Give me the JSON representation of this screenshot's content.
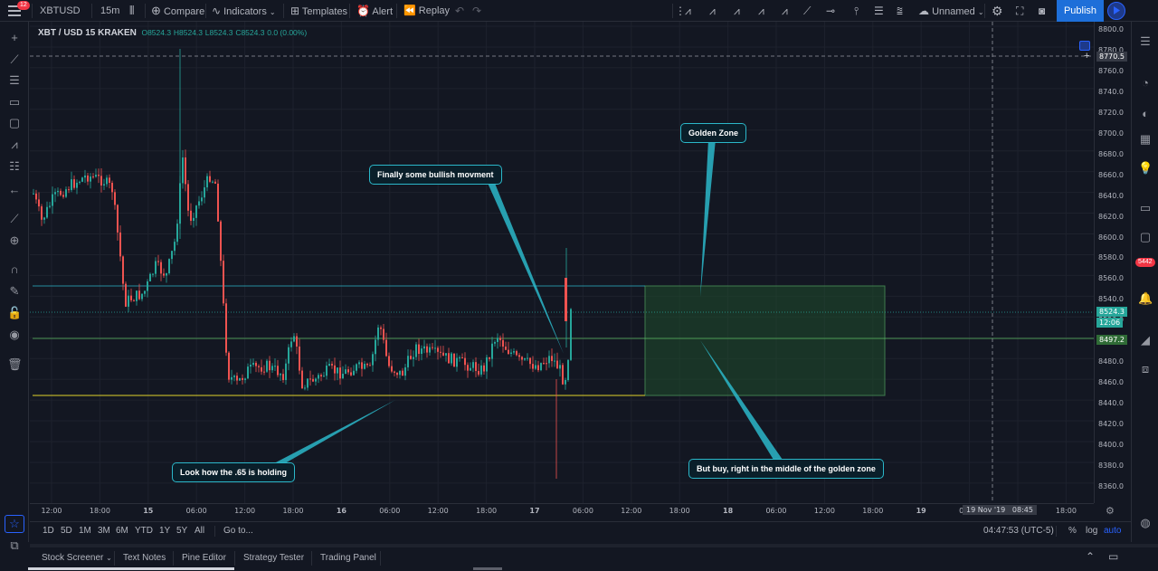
{
  "header": {
    "symbol": "XBTUSD",
    "interval": "15m",
    "compare": "Compare",
    "indicators": "Indicators",
    "templates": "Templates",
    "alert": "Alert",
    "replay": "Replay",
    "layout_name": "Unnamed",
    "publish": "Publish",
    "menu_badge": "12"
  },
  "legend": {
    "title": "XBT / USD  15  KRAKEN",
    "open": "O8524.3",
    "high": "H8524.3",
    "low": "L8524.3",
    "close": "C8524.3",
    "change": "0.0 (0.00%)"
  },
  "price_axis": {
    "labels": [
      "8800.0",
      "8780.0",
      "8760.0",
      "8740.0",
      "8720.0",
      "8700.0",
      "8680.0",
      "8660.0",
      "8640.0",
      "8620.0",
      "8600.0",
      "8580.0",
      "8560.0",
      "8540.0",
      "8520.0",
      "8500.0",
      "8480.0",
      "8460.0",
      "8440.0",
      "8420.0",
      "8400.0",
      "8380.0",
      "8360.0"
    ],
    "crosshair_price": "8770.5",
    "last_price": "8524.3",
    "countdown": "12:06",
    "level_price": "8497.2"
  },
  "time_axis": {
    "labels": [
      "12:00",
      "18:00",
      "15",
      "06:00",
      "12:00",
      "18:00",
      "16",
      "06:00",
      "12:00",
      "18:00",
      "17",
      "06:00",
      "12:00",
      "18:00",
      "18",
      "06:00",
      "12:00",
      "18:00",
      "19",
      "06:00",
      "12:00",
      "18:00"
    ],
    "crosshair_time": "19 Nov '19   08:45"
  },
  "callouts": {
    "golden_zone": "Golden Zone",
    "bullish": "Finally some bullish movment",
    "holding": "Look how the .65 is holding",
    "buy": "But buy, right in the middle of the golden zone"
  },
  "range_bar": {
    "ranges": [
      "1D",
      "5D",
      "1M",
      "3M",
      "6M",
      "YTD",
      "1Y",
      "5Y",
      "All"
    ],
    "goto": "Go to...",
    "clock": "04:47:53 (UTC-5)",
    "percent": "%",
    "log": "log",
    "auto": "auto"
  },
  "bottom_tabs": [
    "Stock Screener",
    "Text Notes",
    "Pine Editor",
    "Strategy Tester",
    "Trading Panel"
  ],
  "right_badge": "5442",
  "colors": {
    "up": "#26a69a",
    "down": "#ef5350",
    "callout_border": "#2bb7c9",
    "golden_zone": "#1f4d2b",
    "fib_line": "#e0d32a"
  }
}
